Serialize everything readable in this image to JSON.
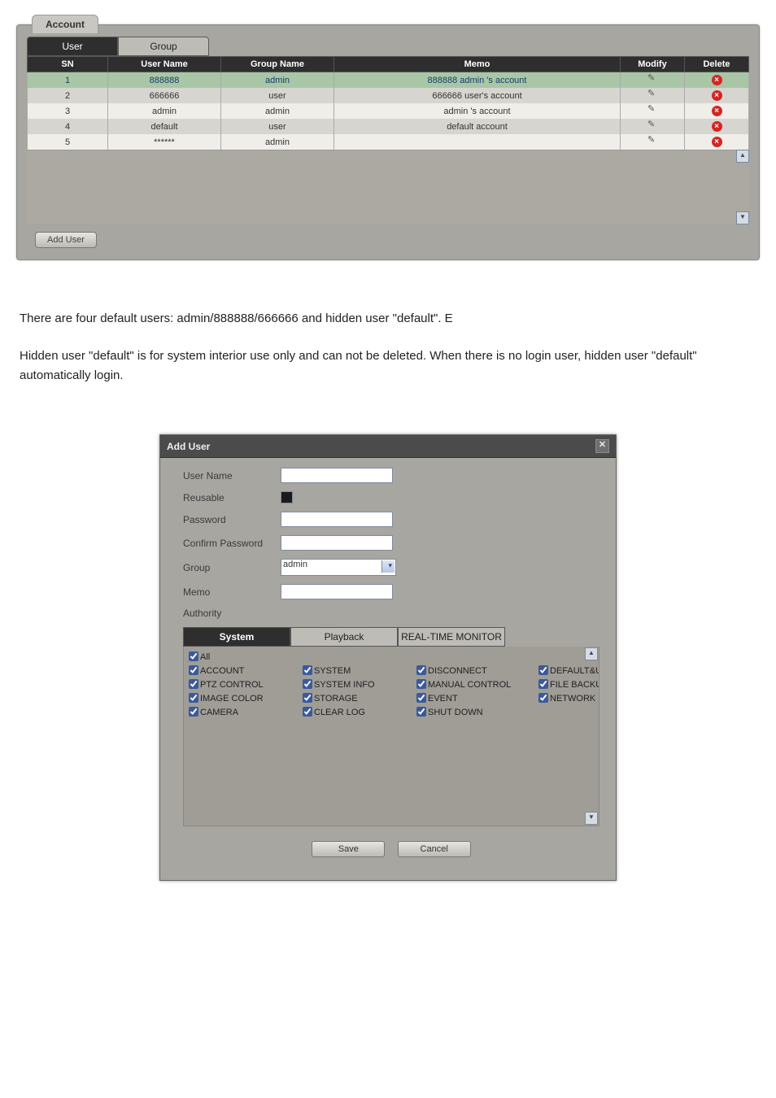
{
  "colors": {
    "panel_bg": "#a8a6a1",
    "header_bg": "#2e2e2e",
    "row_alt": "#d7d5cf",
    "row_hl": "#a9c6a6",
    "row_plain": "#efeee9",
    "link_text": "#11416e",
    "delete_icon": "#d42525"
  },
  "account": {
    "title": "Account",
    "tabs": {
      "user": "User",
      "group": "Group"
    },
    "columns": {
      "sn": "SN",
      "username": "User Name",
      "groupname": "Group Name",
      "memo": "Memo",
      "modify": "Modify",
      "delete": "Delete"
    },
    "rows": [
      {
        "sn": "1",
        "user": "888888",
        "group": "admin",
        "memo": "888888 admin 's account",
        "cls": "hl"
      },
      {
        "sn": "2",
        "user": "666666",
        "group": "user",
        "memo": "666666 user's account",
        "cls": "alt"
      },
      {
        "sn": "3",
        "user": "admin",
        "group": "admin",
        "memo": "admin 's account",
        "cls": "plain"
      },
      {
        "sn": "4",
        "user": "default",
        "group": "user",
        "memo": "default account",
        "cls": "alt"
      },
      {
        "sn": "5",
        "user": "******",
        "group": "admin",
        "memo": "",
        "cls": "plain"
      }
    ],
    "add_user_btn": "Add User"
  },
  "body_text": {
    "p1": "There are four default users: admin/888888/666666 and hidden user \"default\". E",
    "p2": "Hidden user \"default\" is for system interior use only and can not be deleted. When there is no login user, hidden user \"default\" automatically login."
  },
  "adduser": {
    "title": "Add User",
    "labels": {
      "username": "User Name",
      "reusable": "Reusable",
      "password": "Password",
      "confirm": "Confirm Password",
      "group": "Group",
      "memo": "Memo",
      "authority": "Authority"
    },
    "group_value": "admin",
    "auth_tabs": {
      "system": "System",
      "playback": "Playback",
      "realtime": "REAL-TIME MONITOR"
    },
    "auth_items": {
      "all": "All",
      "account": "ACCOUNT",
      "system": "SYSTEM",
      "disconnect": "DISCONNECT",
      "defaultupgrade": "DEFAULT&UPGRADE",
      "ptz": "PTZ CONTROL",
      "sysinfo": "SYSTEM INFO",
      "manual": "MANUAL CONTROL",
      "filebackup": "FILE BACKUP",
      "imagecolor": "IMAGE COLOR",
      "storage": "STORAGE",
      "event": "EVENT",
      "network": "NETWORK",
      "camera": "CAMERA",
      "clearlog": "CLEAR LOG",
      "shutdown": "SHUT DOWN"
    },
    "buttons": {
      "save": "Save",
      "cancel": "Cancel"
    }
  }
}
